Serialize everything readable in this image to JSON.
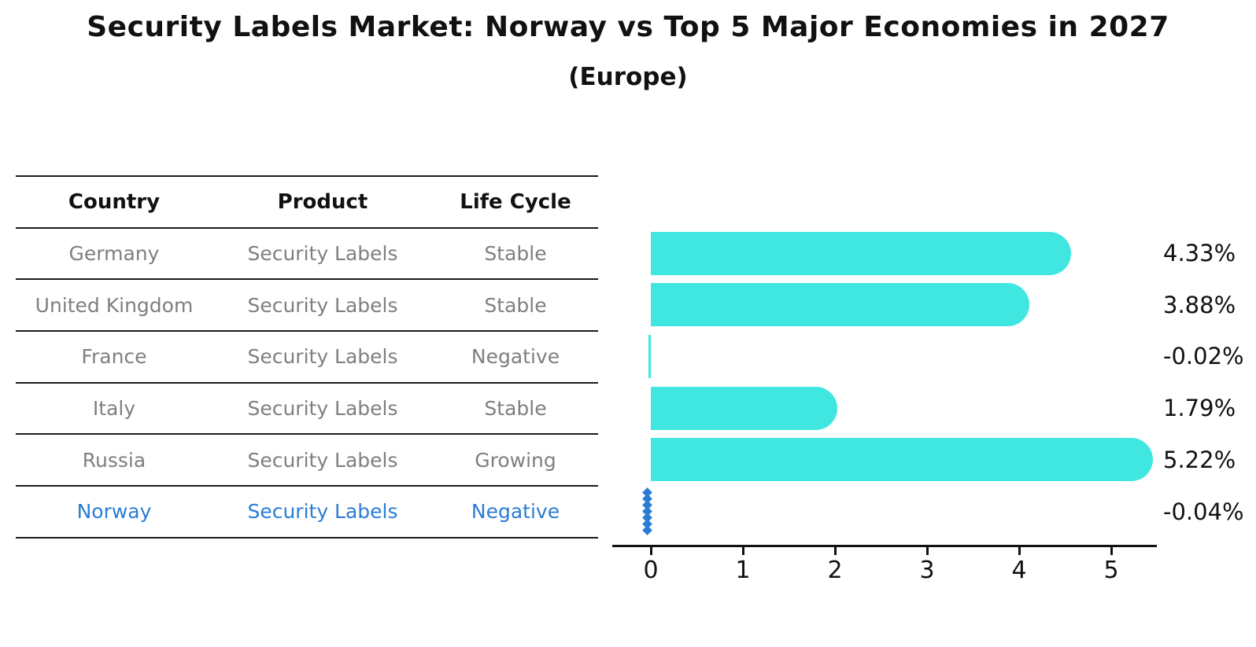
{
  "title": "Security Labels Market: Norway vs Top 5 Major Economies in 2027",
  "subtitle": "(Europe)",
  "table": {
    "headers": [
      "Country",
      "Product",
      "Life Cycle"
    ],
    "rows": [
      {
        "country": "Germany",
        "product": "Security Labels",
        "life_cycle": "Stable",
        "highlight": false
      },
      {
        "country": "United Kingdom",
        "product": "Security Labels",
        "life_cycle": "Stable",
        "highlight": false
      },
      {
        "country": "France",
        "product": "Security Labels",
        "life_cycle": "Negative",
        "highlight": false
      },
      {
        "country": "Italy",
        "product": "Security Labels",
        "life_cycle": "Stable",
        "highlight": false
      },
      {
        "country": "Russia",
        "product": "Security Labels",
        "life_cycle": "Growing",
        "highlight": false
      },
      {
        "country": "Norway",
        "product": "Security Labels",
        "life_cycle": "Negative",
        "highlight": true
      }
    ]
  },
  "chart_data": {
    "type": "bar",
    "orientation": "horizontal",
    "title": "Security Labels Market: Norway vs Top 5 Major Economies in 2027",
    "subtitle": "(Europe)",
    "categories": [
      "Germany",
      "United Kingdom",
      "France",
      "Italy",
      "Russia",
      "Norway"
    ],
    "values": [
      4.33,
      3.88,
      -0.02,
      1.79,
      5.22,
      -0.04
    ],
    "value_labels": [
      "4.33%",
      "3.88%",
      "-0.02%",
      "1.79%",
      "5.22%",
      "-0.04%"
    ],
    "x_ticks": [
      0,
      1,
      2,
      3,
      4,
      5
    ],
    "xlim": [
      -0.42,
      5.5
    ],
    "xlabel": "",
    "ylabel": "",
    "grid": false,
    "legend": false,
    "bar_color": "#40E7E0",
    "highlight_category": "Norway",
    "highlight_marker": "diamond-chain",
    "highlight_color": "#2A7CD4"
  },
  "colors": {
    "bar": "#40E7E0",
    "highlight_blue": "#2A7CD4",
    "axis": "#111111",
    "table_line": "#1a1a1a",
    "table_text": "#7f7f7f",
    "header_text": "#111111"
  }
}
